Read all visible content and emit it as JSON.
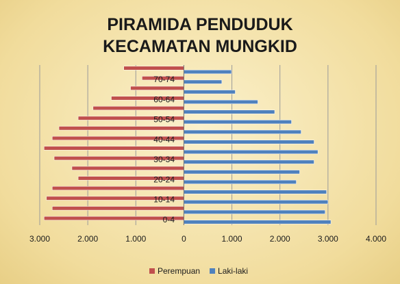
{
  "chart_data": {
    "type": "pyramid",
    "title": "PIRAMIDA PENDUDUK KECAMATAN MUNGKID",
    "categories": [
      "0-4",
      null,
      "10-14",
      null,
      "20-24",
      null,
      "30-34",
      null,
      "40-44",
      null,
      "50-54",
      null,
      "60-64",
      null,
      "70-74",
      null
    ],
    "series": [
      {
        "name": "Perempuan",
        "color": "#c0504d",
        "values": [
          -2910,
          -2740,
          -2860,
          -2740,
          -2200,
          -2330,
          -2700,
          -2910,
          -2740,
          -2600,
          -2200,
          -1890,
          -1510,
          -1110,
          -870,
          -1250
        ]
      },
      {
        "name": "Laki-laki",
        "color": "#4f81bd",
        "values": [
          3060,
          2940,
          3000,
          2970,
          2340,
          2410,
          2710,
          2790,
          2710,
          2440,
          2240,
          1890,
          1540,
          1070,
          790,
          990
        ]
      }
    ],
    "xlim": [
      -3000,
      4000
    ],
    "xticks": [
      {
        "value": -3000,
        "label": "3.000"
      },
      {
        "value": -2000,
        "label": "2.000"
      },
      {
        "value": -1000,
        "label": "1.000"
      },
      0,
      {
        "value": 1000,
        "label": "1.000"
      },
      {
        "value": 2000,
        "label": "2.000"
      },
      {
        "value": 3000,
        "label": "3.000"
      },
      {
        "value": 4000,
        "label": "4.000"
      }
    ],
    "negative_tick_color": "#e00000",
    "grid": true,
    "legend": "bottom"
  }
}
